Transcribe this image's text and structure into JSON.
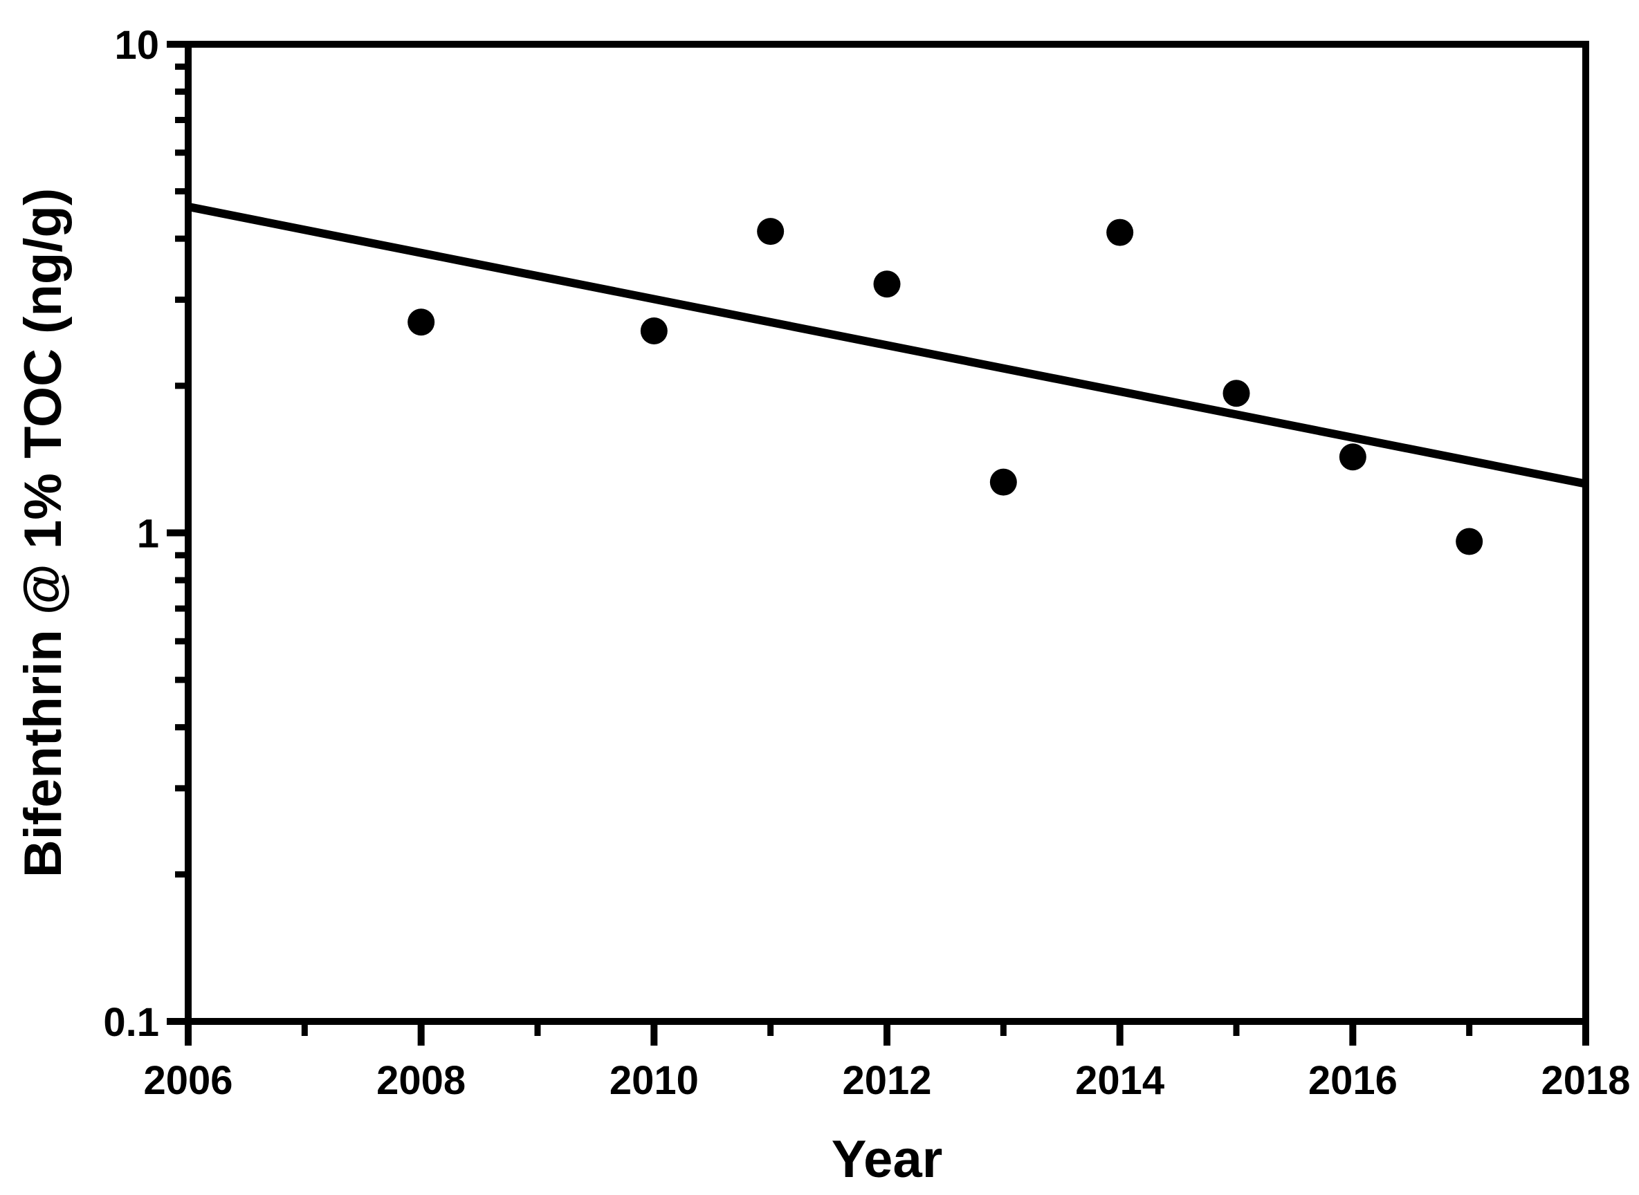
{
  "chart_data": {
    "type": "scatter",
    "title": "",
    "xlabel": "Year",
    "ylabel": "Bifenthrin @ 1% TOC (ng/g)",
    "x_range": [
      2006,
      2018
    ],
    "y_range": [
      0.1,
      10
    ],
    "y_scale": "log",
    "x_major_ticks": [
      2006,
      2008,
      2010,
      2012,
      2014,
      2016,
      2018
    ],
    "x_major_tick_labels": [
      "2006",
      "2008",
      "2010",
      "2012",
      "2014",
      "2016",
      "2018"
    ],
    "x_minor_ticks": [
      2007,
      2009,
      2011,
      2013,
      2015,
      2017
    ],
    "y_major_ticks": [
      0.1,
      1,
      10
    ],
    "y_major_tick_labels": [
      "0.1",
      "1",
      "10"
    ],
    "y_minor_ticks": [
      0.2,
      0.3,
      0.4,
      0.5,
      0.6,
      0.7,
      0.8,
      0.9,
      2,
      3,
      4,
      5,
      6,
      7,
      8,
      9
    ],
    "grid": false,
    "legend": null,
    "marker_color": "#000000",
    "line_color": "#000000",
    "background_color": "#ffffff",
    "points": [
      {
        "year": 2008,
        "value": 2.7
      },
      {
        "year": 2010,
        "value": 2.59
      },
      {
        "year": 2011,
        "value": 4.14
      },
      {
        "year": 2012,
        "value": 3.23
      },
      {
        "year": 2013,
        "value": 1.27
      },
      {
        "year": 2014,
        "value": 4.12
      },
      {
        "year": 2015,
        "value": 1.93
      },
      {
        "year": 2016,
        "value": 1.43
      },
      {
        "year": 2017,
        "value": 0.96
      }
    ],
    "trend_line": {
      "start_year": 2006,
      "start_value": 4.65,
      "end_year": 2018,
      "end_value": 1.26
    }
  }
}
